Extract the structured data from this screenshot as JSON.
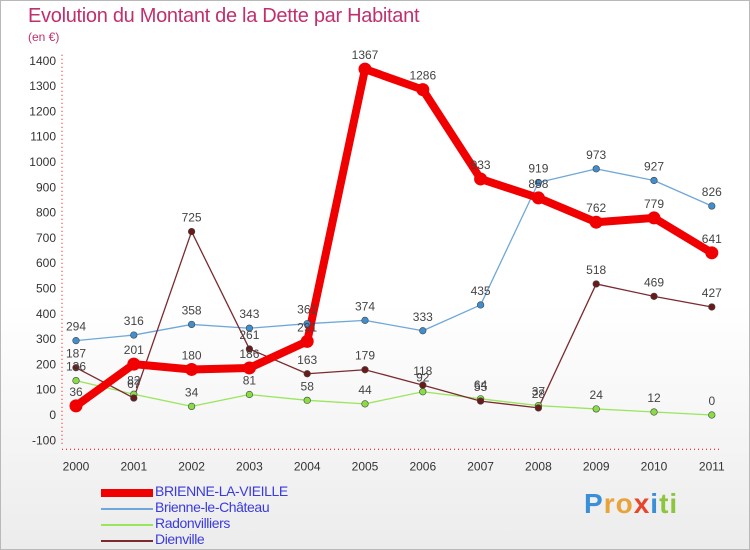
{
  "header": {
    "title": "Evolution du Montant de la Dette par Habitant",
    "unit": "(en €)"
  },
  "logo": {
    "letters": [
      "P",
      "r",
      "o",
      "x",
      "i",
      "t",
      "i"
    ],
    "colors": [
      "#3a8fd8",
      "#e8a33a",
      "#e8a33a",
      "#e8452b",
      "#3a8fd8",
      "#8cc63f",
      "#8cc63f"
    ]
  },
  "chart_data": {
    "type": "line",
    "title": "Evolution du Montant de la Dette par Habitant",
    "ylabel": "(en €)",
    "xlabel": "",
    "x": [
      "2000",
      "2001",
      "2002",
      "2003",
      "2004",
      "2005",
      "2006",
      "2007",
      "2008",
      "2009",
      "2010",
      "2011"
    ],
    "ylim": [
      -100,
      1400
    ],
    "yticks": [
      -100,
      0,
      100,
      200,
      300,
      400,
      500,
      600,
      700,
      800,
      900,
      1000,
      1100,
      1200,
      1300,
      1400
    ],
    "grid": false,
    "legend_position": "bottom-left",
    "series": [
      {
        "name": "BRIENNE-LA-VIEILLE",
        "color": "#f00000",
        "width": 8,
        "marker": "#f00000",
        "values": [
          36,
          201,
          180,
          186,
          291,
          1367,
          1286,
          933,
          858,
          762,
          779,
          641
        ]
      },
      {
        "name": "Brienne-le-Château",
        "color": "#6fa7d8",
        "width": 1.3,
        "marker": "#3f8fd0",
        "values": [
          294,
          316,
          358,
          343,
          361,
          374,
          333,
          435,
          919,
          973,
          927,
          826
        ]
      },
      {
        "name": "Radonvilliers",
        "color": "#99e65c",
        "width": 1.3,
        "marker": "#88dd44",
        "values": [
          136,
          82,
          34,
          81,
          58,
          44,
          92,
          64,
          37,
          24,
          12,
          0
        ]
      },
      {
        "name": "Dienville",
        "color": "#7b2a30",
        "width": 1.3,
        "marker": "#6b1a1a",
        "values": [
          187,
          67,
          725,
          261,
          163,
          179,
          118,
          55,
          28,
          518,
          469,
          427
        ]
      }
    ]
  }
}
